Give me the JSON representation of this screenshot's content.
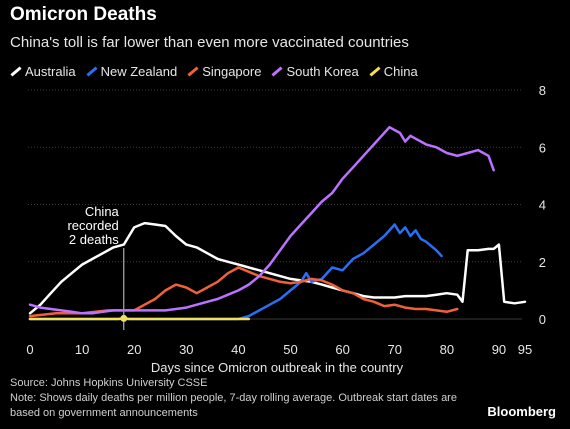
{
  "title": "Omicron Deaths",
  "subtitle": "China's toll is far lower than even more vaccinated countries",
  "source_lines": [
    "Source: Johns Hopkins University CSSE",
    "Note: Shows daily deaths per million people, 7-day rolling average. Outbreak start dates are based on government announcements"
  ],
  "brand": "Bloomberg",
  "chart_data": {
    "type": "line",
    "xlabel": "Days since Omicron outbreak in the country",
    "ylabel": "",
    "xlim": [
      0,
      95
    ],
    "ylim": [
      0,
      8
    ],
    "x_ticks": [
      0,
      10,
      20,
      30,
      40,
      50,
      60,
      70,
      80,
      90,
      95
    ],
    "y_ticks": [
      0,
      2,
      4,
      6,
      8
    ],
    "grid": true,
    "legend_position": "top",
    "annotation": {
      "text_lines": [
        "China",
        "recorded",
        "2 deaths"
      ],
      "x": 18
    },
    "series": [
      {
        "name": "Australia",
        "color": "#ffffff",
        "x": [
          0,
          2,
          4,
          6,
          8,
          10,
          12,
          14,
          16,
          18,
          20,
          22,
          24,
          26,
          28,
          30,
          32,
          34,
          36,
          38,
          40,
          42,
          44,
          46,
          48,
          50,
          52,
          54,
          56,
          58,
          60,
          62,
          64,
          66,
          68,
          70,
          72,
          74,
          76,
          78,
          80,
          82,
          83,
          84,
          86,
          88,
          89,
          90,
          91,
          93,
          95
        ],
        "y": [
          0.2,
          0.5,
          0.9,
          1.3,
          1.6,
          1.9,
          2.1,
          2.3,
          2.5,
          2.6,
          3.2,
          3.35,
          3.3,
          3.25,
          2.9,
          2.6,
          2.5,
          2.3,
          2.1,
          2.0,
          1.9,
          1.8,
          1.7,
          1.6,
          1.5,
          1.4,
          1.35,
          1.3,
          1.2,
          1.1,
          1.0,
          0.9,
          0.8,
          0.75,
          0.75,
          0.75,
          0.8,
          0.8,
          0.8,
          0.85,
          0.9,
          0.85,
          0.6,
          2.4,
          2.4,
          2.45,
          2.45,
          2.6,
          0.6,
          0.55,
          0.6
        ]
      },
      {
        "name": "New Zealand",
        "color": "#2a6ef5",
        "x": [
          0,
          5,
          10,
          15,
          20,
          25,
          30,
          35,
          38,
          40,
          42,
          44,
          46,
          48,
          50,
          52,
          53,
          54,
          56,
          58,
          60,
          62,
          64,
          66,
          68,
          70,
          71,
          72,
          73,
          74,
          75,
          76,
          78,
          79
        ],
        "y": [
          0,
          0,
          0,
          0,
          0,
          0,
          0,
          0,
          0,
          0,
          0.1,
          0.3,
          0.5,
          0.7,
          1.0,
          1.3,
          1.6,
          1.3,
          1.4,
          1.8,
          1.7,
          2.1,
          2.3,
          2.6,
          2.9,
          3.3,
          3.0,
          3.2,
          2.9,
          3.1,
          2.8,
          2.7,
          2.4,
          2.2
        ]
      },
      {
        "name": "Singapore",
        "color": "#f0603a",
        "x": [
          0,
          5,
          10,
          15,
          18,
          20,
          22,
          24,
          26,
          28,
          30,
          32,
          34,
          36,
          38,
          40,
          42,
          44,
          46,
          48,
          50,
          52,
          54,
          56,
          58,
          60,
          62,
          64,
          66,
          68,
          70,
          72,
          74,
          76,
          78,
          80,
          82
        ],
        "y": [
          0.1,
          0.2,
          0.2,
          0.3,
          0.3,
          0.3,
          0.5,
          0.7,
          1.0,
          1.2,
          1.1,
          0.9,
          1.1,
          1.3,
          1.6,
          1.8,
          1.65,
          1.5,
          1.4,
          1.3,
          1.25,
          1.3,
          1.4,
          1.35,
          1.2,
          1.0,
          0.9,
          0.7,
          0.6,
          0.45,
          0.5,
          0.4,
          0.35,
          0.35,
          0.3,
          0.25,
          0.35
        ]
      },
      {
        "name": "South Korea",
        "color": "#bb72ff",
        "x": [
          0,
          2,
          4,
          6,
          8,
          10,
          12,
          14,
          16,
          18,
          20,
          22,
          24,
          26,
          28,
          30,
          32,
          34,
          36,
          38,
          40,
          42,
          44,
          46,
          48,
          50,
          52,
          54,
          56,
          58,
          60,
          62,
          64,
          66,
          68,
          69,
          70,
          71,
          72,
          73,
          74,
          75,
          76,
          78,
          80,
          82,
          84,
          86,
          88,
          89
        ],
        "y": [
          0.5,
          0.4,
          0.35,
          0.3,
          0.25,
          0.2,
          0.2,
          0.25,
          0.3,
          0.3,
          0.3,
          0.3,
          0.3,
          0.3,
          0.35,
          0.4,
          0.5,
          0.6,
          0.7,
          0.85,
          1.0,
          1.2,
          1.5,
          1.9,
          2.4,
          2.9,
          3.3,
          3.7,
          4.1,
          4.4,
          4.9,
          5.3,
          5.7,
          6.1,
          6.5,
          6.7,
          6.6,
          6.5,
          6.2,
          6.4,
          6.3,
          6.2,
          6.1,
          6.0,
          5.8,
          5.7,
          5.8,
          5.9,
          5.7,
          5.2
        ]
      },
      {
        "name": "China",
        "color": "#f2e05a",
        "x": [
          0,
          5,
          10,
          15,
          17,
          18,
          19,
          20,
          25,
          30,
          35,
          40,
          42
        ],
        "y": [
          0,
          0,
          0,
          0,
          0,
          0.03,
          0,
          0,
          0,
          0,
          0,
          0,
          0
        ]
      }
    ]
  }
}
